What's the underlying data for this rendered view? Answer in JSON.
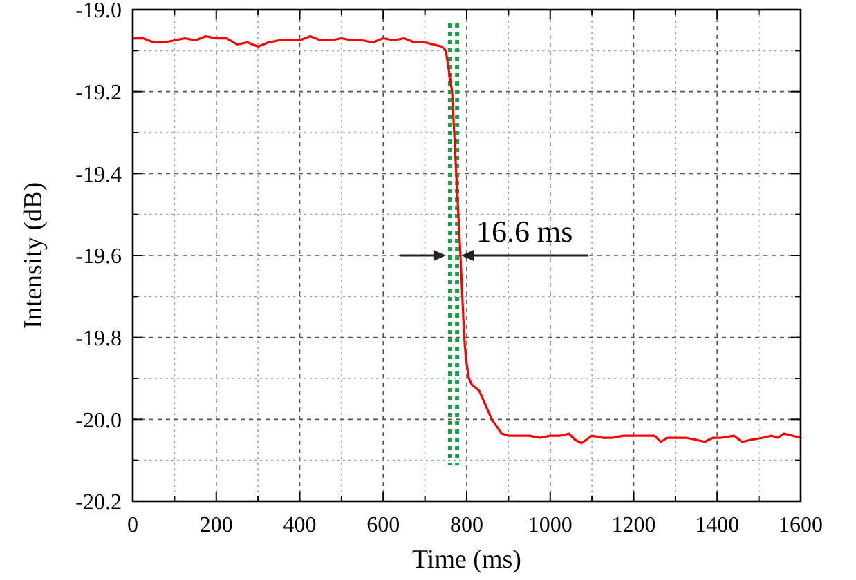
{
  "chart_data": {
    "type": "line",
    "xlabel": "Time (ms)",
    "ylabel": "Intensity (dB)",
    "x": [
      0,
      25,
      50,
      75,
      100,
      125,
      150,
      175,
      200,
      225,
      250,
      275,
      300,
      325,
      350,
      375,
      400,
      425,
      450,
      475,
      500,
      525,
      550,
      575,
      600,
      625,
      650,
      675,
      700,
      720,
      740,
      750,
      765,
      775,
      785,
      794,
      798,
      805,
      812,
      830,
      860,
      884,
      900,
      925,
      950,
      975,
      1000,
      1025,
      1045,
      1060,
      1075,
      1100,
      1125,
      1150,
      1175,
      1200,
      1225,
      1250,
      1265,
      1280,
      1300,
      1325,
      1350,
      1370,
      1390,
      1410,
      1440,
      1460,
      1480,
      1510,
      1530,
      1545,
      1560,
      1580,
      1600
    ],
    "series": [
      {
        "color": "#ff0000",
        "values": [
          -19.07,
          -19.07,
          -19.08,
          -19.08,
          -19.075,
          -19.07,
          -19.075,
          -19.065,
          -19.07,
          -19.07,
          -19.085,
          -19.08,
          -19.09,
          -19.08,
          -19.075,
          -19.075,
          -19.075,
          -19.065,
          -19.075,
          -19.075,
          -19.07,
          -19.075,
          -19.075,
          -19.08,
          -19.07,
          -19.075,
          -19.07,
          -19.08,
          -19.08,
          -19.085,
          -19.09,
          -19.1,
          -19.2,
          -19.4,
          -19.6,
          -19.8,
          -19.85,
          -19.9,
          -19.915,
          -19.93,
          -20.0,
          -20.035,
          -20.04,
          -20.04,
          -20.04,
          -20.045,
          -20.04,
          -20.04,
          -20.035,
          -20.05,
          -20.058,
          -20.04,
          -20.045,
          -20.045,
          -20.04,
          -20.04,
          -20.04,
          -20.04,
          -20.055,
          -20.045,
          -20.045,
          -20.045,
          -20.05,
          -20.055,
          -20.045,
          -20.045,
          -20.04,
          -20.055,
          -20.05,
          -20.045,
          -20.04,
          -20.045,
          -20.035,
          -20.04,
          -20.045
        ]
      }
    ],
    "xlim": [
      0,
      1600
    ],
    "ylim": [
      -20.2,
      -19.0
    ],
    "xticks": [
      0,
      {
        "value": 100,
        "label": null
      },
      200,
      {
        "value": 300,
        "label": null
      },
      400,
      {
        "value": 500,
        "label": null
      },
      600,
      {
        "value": 700,
        "label": null
      },
      800,
      {
        "value": 900,
        "label": null
      },
      1000,
      {
        "value": 1100,
        "label": null
      },
      1200,
      {
        "value": 1300,
        "label": null
      },
      1400,
      {
        "value": 1500,
        "label": null
      },
      1600
    ],
    "yticks": [
      {
        "value": -20.2,
        "label": "-20.2"
      },
      {
        "value": -20.1,
        "label": null
      },
      {
        "value": -20.0,
        "label": "-20.0"
      },
      {
        "value": -19.9,
        "label": null
      },
      {
        "value": -19.8,
        "label": "-19.8"
      },
      {
        "value": -19.7,
        "label": null
      },
      {
        "value": -19.6,
        "label": "-19.6"
      },
      {
        "value": -19.5,
        "label": null
      },
      {
        "value": -19.4,
        "label": "-19.4"
      },
      {
        "value": -19.3,
        "label": null
      },
      {
        "value": -19.2,
        "label": "-19.2"
      },
      {
        "value": -19.1,
        "label": null
      },
      {
        "value": -19.0,
        "label": "-19.0"
      }
    ],
    "grid": true,
    "marker": "none",
    "line_style": "solid",
    "ref_lines": [
      {
        "axis": "x",
        "value": 760,
        "color": "#1aa04a",
        "line_style": "dotted"
      },
      {
        "axis": "x",
        "value": 777,
        "color": "#1aa04a",
        "line_style": "dotted"
      }
    ],
    "annotations": [
      "16.6 ms"
    ]
  }
}
